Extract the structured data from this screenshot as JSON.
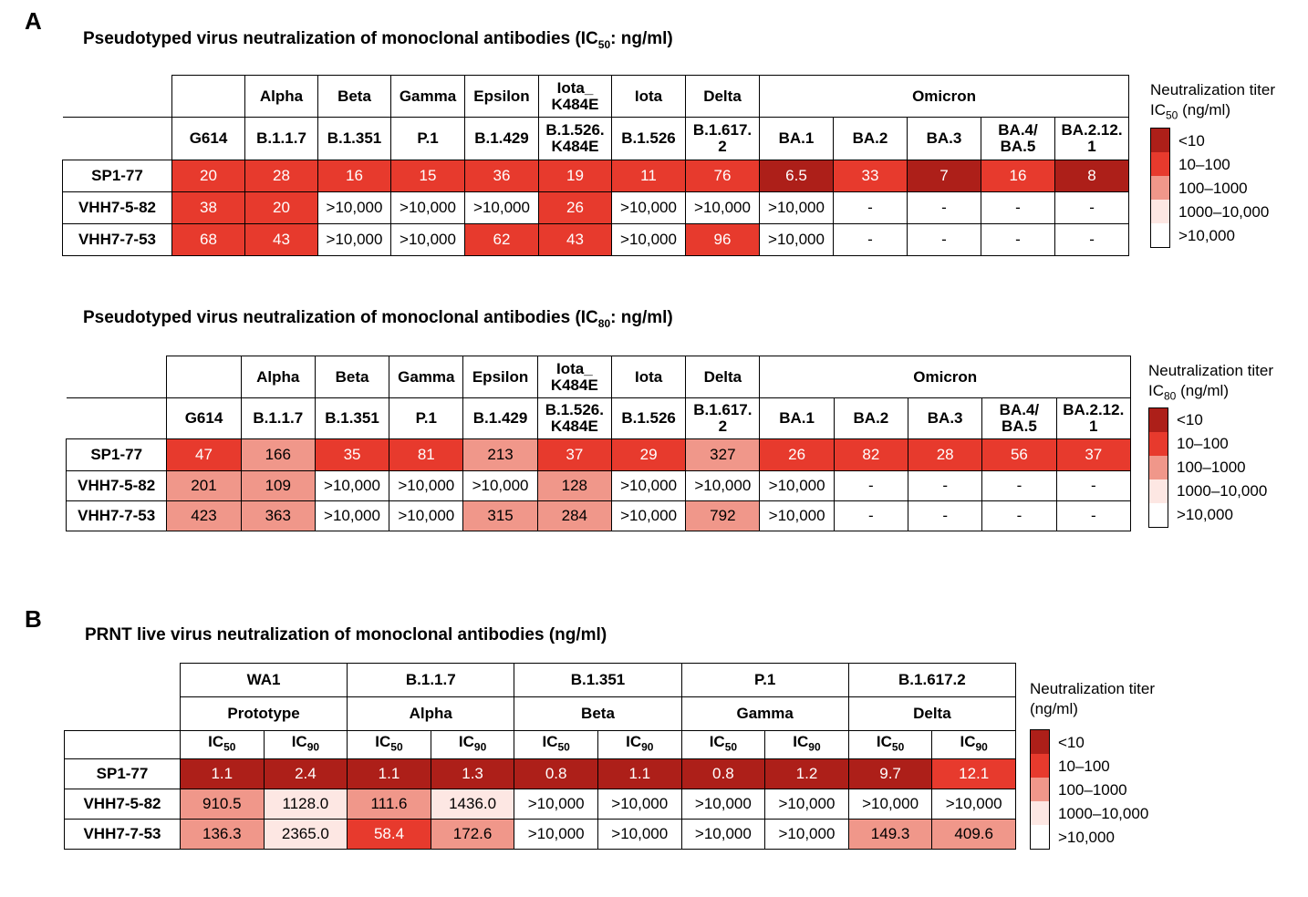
{
  "panel_a": {
    "letter": "A",
    "ic50": {
      "title": "Pseudotyped virus neutralization of monoclonal antibodies (IC",
      "title_sub": "50",
      "title_end": ": ng/ml)",
      "variant_row": [
        "",
        "Alpha",
        "Beta",
        "Gamma",
        "Epsilon",
        "Iota_\nK484E",
        "Iota",
        "Delta",
        "Omicron"
      ],
      "lineage_row": [
        "G614",
        "B.1.1.7",
        "B.1.351",
        "P.1",
        "B.1.429",
        "B.1.526.\nK484E",
        "B.1.526",
        "B.1.617.\n2",
        "BA.1",
        "BA.2",
        "BA.3",
        "BA.4/\nBA.5",
        "BA.2.12.\n1"
      ],
      "rows": [
        {
          "label": "SP1-77",
          "values": [
            "20",
            "28",
            "16",
            "15",
            "36",
            "19",
            "11",
            "76",
            "6.5",
            "33",
            "7",
            "16",
            "8"
          ]
        },
        {
          "label": "VHH7-5-82",
          "values": [
            "38",
            "20",
            ">10,000",
            ">10,000",
            ">10,000",
            "26",
            ">10,000",
            ">10,000",
            ">10,000",
            "-",
            "-",
            "-",
            "-"
          ]
        },
        {
          "label": "VHH7-7-53",
          "values": [
            "68",
            "43",
            ">10,000",
            ">10,000",
            "62",
            "43",
            ">10,000",
            "96",
            ">10,000",
            "-",
            "-",
            "-",
            "-"
          ]
        }
      ],
      "legend": {
        "title": "Neutralization titer",
        "sub_pre": "IC",
        "sub": "50",
        "sub_post": " (ng/ml)"
      }
    },
    "ic80": {
      "title": "Pseudotyped virus neutralization of monoclonal antibodies  (IC",
      "title_sub": "80",
      "title_end": ": ng/ml)",
      "variant_row": [
        "",
        "Alpha",
        "Beta",
        "Gamma",
        "Epsilon",
        "Iota_\nK484E",
        "Iota",
        "Delta",
        "Omicron"
      ],
      "lineage_row": [
        "G614",
        "B.1.1.7",
        "B.1.351",
        "P.1",
        "B.1.429",
        "B.1.526.\nK484E",
        "B.1.526",
        "B.1.617.\n2",
        "BA.1",
        "BA.2",
        "BA.3",
        "BA.4/\nBA.5",
        "BA.2.12.\n1"
      ],
      "rows": [
        {
          "label": "SP1-77",
          "values": [
            "47",
            "166",
            "35",
            "81",
            "213",
            "37",
            "29",
            "327",
            "26",
            "82",
            "28",
            "56",
            "37"
          ]
        },
        {
          "label": "VHH7-5-82",
          "values": [
            "201",
            "109",
            ">10,000",
            ">10,000",
            ">10,000",
            "128",
            ">10,000",
            ">10,000",
            ">10,000",
            "-",
            "-",
            "-",
            "-"
          ]
        },
        {
          "label": "VHH7-7-53",
          "values": [
            "423",
            "363",
            ">10,000",
            ">10,000",
            "315",
            "284",
            ">10,000",
            "792",
            ">10,000",
            "-",
            "-",
            "-",
            "-"
          ]
        }
      ],
      "legend": {
        "title": "Neutralization titer",
        "sub_pre": "IC",
        "sub": "80",
        "sub_post": " (ng/ml)"
      }
    }
  },
  "panel_b": {
    "letter": "B",
    "title": "PRNT live virus neutralization of monoclonal antibodies (ng/ml)",
    "lineages": [
      "WA1",
      "B.1.1.7",
      "B.1.351",
      "P.1",
      "B.1.617.2"
    ],
    "variants": [
      "Prototype",
      "Alpha",
      "Beta",
      "Gamma",
      "Delta"
    ],
    "metric_pre": "IC",
    "metrics": [
      "50",
      "90"
    ],
    "rows": [
      {
        "label": "SP1-77",
        "values": [
          "1.1",
          "2.4",
          "1.1",
          "1.3",
          "0.8",
          "1.1",
          "0.8",
          "1.2",
          "9.7",
          "12.1"
        ]
      },
      {
        "label": "VHH7-5-82",
        "values": [
          "910.5",
          "1128.0",
          "111.6",
          "1436.0",
          ">10,000",
          ">10,000",
          ">10,000",
          ">10,000",
          ">10,000",
          ">10,000"
        ]
      },
      {
        "label": "VHH7-7-53",
        "values": [
          "136.3",
          "2365.0",
          "58.4",
          "172.6",
          ">10,000",
          ">10,000",
          ">10,000",
          ">10,000",
          "149.3",
          "409.6"
        ]
      }
    ],
    "legend": {
      "title": "Neutralization titer",
      "title2": "(ng/ml)"
    }
  },
  "legend_bins": [
    "<10",
    "10–100",
    "100–1000",
    "1000–10,000",
    ">10,000"
  ],
  "colors": {
    "lt10": "#ad1f19",
    "10_100": "#e73a2d",
    "100_1000": "#f0978a",
    "1000_10000": "#fde7e3",
    "gt10000": "#ffffff"
  }
}
